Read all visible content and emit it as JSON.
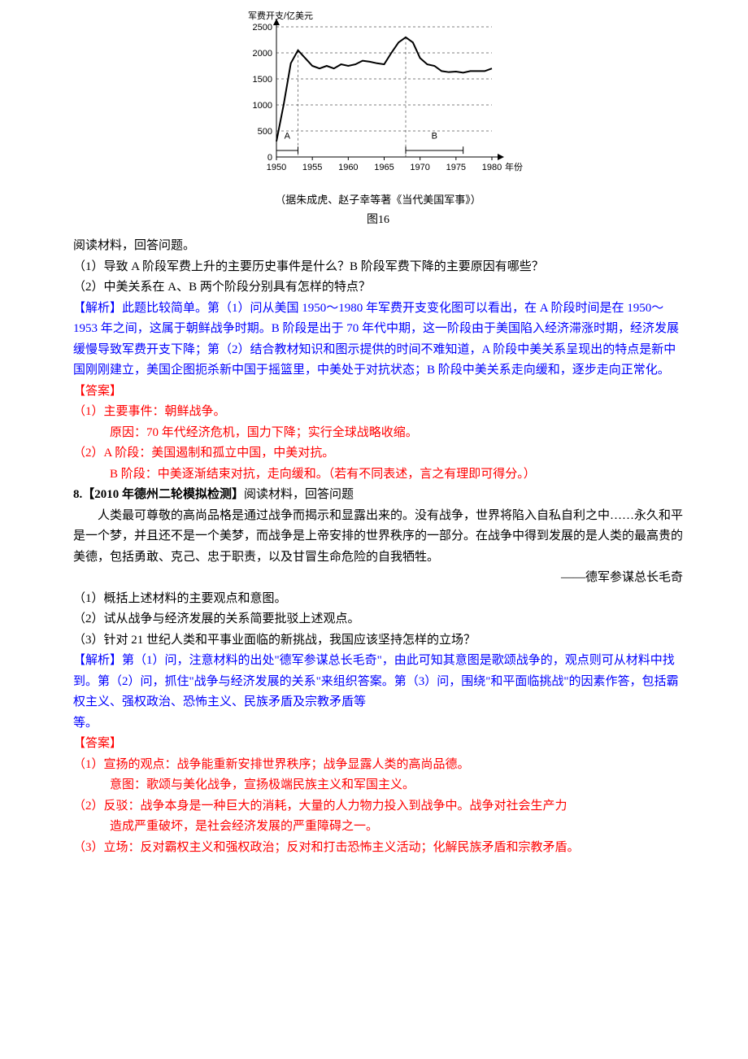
{
  "chart": {
    "type": "line",
    "ylabel": "军费开支/亿美元",
    "y_ticks": [
      0,
      500,
      1000,
      1500,
      2000,
      2500
    ],
    "x_ticks": [
      1950,
      1955,
      1960,
      1965,
      1970,
      1975,
      1980
    ],
    "xlabel_right": "年份",
    "region_a_label": "A",
    "region_b_label": "B",
    "axis_color": "#000000",
    "grid_color": "#000000",
    "curve_color": "#000000",
    "curve_points": [
      [
        1950,
        300
      ],
      [
        1951,
        1000
      ],
      [
        1952,
        1800
      ],
      [
        1953,
        2050
      ],
      [
        1954,
        1900
      ],
      [
        1955,
        1750
      ],
      [
        1956,
        1700
      ],
      [
        1957,
        1750
      ],
      [
        1958,
        1700
      ],
      [
        1959,
        1780
      ],
      [
        1960,
        1750
      ],
      [
        1961,
        1780
      ],
      [
        1962,
        1850
      ],
      [
        1963,
        1830
      ],
      [
        1964,
        1800
      ],
      [
        1965,
        1780
      ],
      [
        1966,
        2000
      ],
      [
        1967,
        2200
      ],
      [
        1968,
        2300
      ],
      [
        1969,
        2200
      ],
      [
        1970,
        1900
      ],
      [
        1971,
        1780
      ],
      [
        1972,
        1750
      ],
      [
        1973,
        1650
      ],
      [
        1974,
        1630
      ],
      [
        1975,
        1640
      ],
      [
        1976,
        1620
      ],
      [
        1977,
        1650
      ],
      [
        1978,
        1650
      ],
      [
        1979,
        1650
      ],
      [
        1980,
        1700
      ]
    ],
    "ylim": [
      0,
      2500
    ],
    "xlim": [
      1950,
      1980
    ],
    "subtitle": "（据朱成虎、赵子幸等著《当代美国军事》）",
    "figlabel": "图16"
  },
  "intro": "阅读材料，回答问题。",
  "q1": "（1）导致 A 阶段军费上升的主要历史事件是什么？B 阶段军费下降的主要原因有哪些？",
  "q2": "（2）中美关系在 A、B 两个阶段分别具有怎样的特点？",
  "analysis_label": "【解析】",
  "analysis_text": "此题比较简单。第（1）问从美国 1950～1980 年军费开支变化图可以看出，在 A 阶段时间是在 1950～1953 年之间，这属于朝鲜战争时期。B 阶段是出于 70 年代中期，这一阶段由于美国陷入经济滞涨时期，经济发展缓慢导致军费开支下降；第（2）结合教材知识和图示提供的时间不难知道，A 阶段中美关系呈现出的特点是新中国刚刚建立，美国企图扼杀新中国于摇篮里，中美处于对抗状态；B 阶段中美关系走向缓和，逐步走向正常化。",
  "answer_label": "【答案】",
  "ans1_line1": "（1）主要事件：朝鲜战争。",
  "ans1_line2": "原因：70 年代经济危机，国力下降；实行全球战略收缩。",
  "ans2_line1": "（2）A 阶段：美国遏制和孤立中国，中美对抗。",
  "ans2_line2": "B 阶段：中美逐渐结束对抗，走向缓和。（若有不同表述，言之有理即可得分。）",
  "q8_num": "8.",
  "q8_title": "【2010 年德州二轮模拟检测】",
  "q8_tail": "阅读材料，回答问题",
  "passage_p1": "人类最可尊敬的高尚品格是通过战争而揭示和显露出来的。没有战争，世界将陷入自私自利之中……永久和平是一个梦，并且还不是一个美梦，而战争是上帝安排的世界秩序的一部分。在战争中得到发展的是人类的最高贵的美德，包括勇敢、克己、忠于职责，以及甘冒生命危险的自我牺牲。",
  "passage_source": "——德军参谋总长毛奇",
  "q8_1": "（1）概括上述材料的主要观点和意图。",
  "q8_2": "（2）试从战争与经济发展的关系简要批驳上述观点。",
  "q8_3": "（3）针对 21 世纪人类和平事业面临的新挑战，我国应该坚持怎样的立场？",
  "analysis2_text": "第（1）问，注意材料的出处\"德军参谋总长毛奇\"，由此可知其意图是歌颂战争的，观点则可从材料中找到。第（2）问，抓住\"战争与经济发展的关系\"来组织答案。第（3）问，围绕\"和平面临挑战\"的因素作答，包括霸权主义、强权政治、恐怖主义、民族矛盾及宗教矛盾等",
  "analysis2_tail": "等。",
  "ans8_1_line1": "（1）宣扬的观点：战争能重新安排世界秩序；战争显露人类的高尚品德。",
  "ans8_1_line2": "意图：歌颂与美化战争，宣扬极端民族主义和军国主义。",
  "ans8_2_line1": "（2）反驳：战争本身是一种巨大的消耗，大量的人力物力投入到战争中。战争对社会生产力",
  "ans8_2_line2": "造成严重破坏，是社会经济发展的严重障碍之一。",
  "ans8_3": "（3）立场：反对霸权主义和强权政治；反对和打击恐怖主义活动；化解民族矛盾和宗教矛盾。"
}
